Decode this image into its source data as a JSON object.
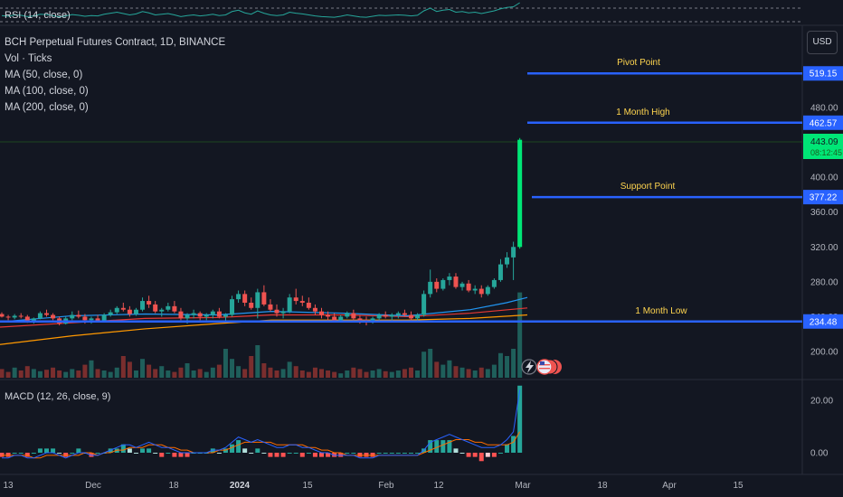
{
  "rsi": {
    "label": "RSI (14, close)"
  },
  "macd": {
    "label": "MACD (12, 26, close, 9)",
    "ticks": [
      "20.00",
      "0.00"
    ]
  },
  "legend": {
    "title": "BCH Perpetual Futures Contract, 1D, BINANCE",
    "volume": "Vol · Ticks",
    "ma50": "MA (50, close, 0)",
    "ma100": "MA (100, close, 0)",
    "ma200": "MA (200, close, 0)"
  },
  "currency": "USD",
  "colors": {
    "background": "#131722",
    "up": "#26a69a",
    "down": "#ef5350",
    "big_up": "#00e676",
    "level_line": "#2962ff",
    "annotation_text": "#ffd54f",
    "ma50": "#2196f3",
    "ma100": "#e53935",
    "ma200": "#ff9800"
  },
  "price_axis": {
    "ticks": [
      "480.00",
      "440.00",
      "400.00",
      "360.00",
      "320.00",
      "280.00",
      "240.00",
      "200.00"
    ]
  },
  "current_price": {
    "value": "443.09",
    "countdown": "08:12:45"
  },
  "chart_data": {
    "type": "candlestick",
    "title": "BCH Perpetual Futures Contract, 1D, BINANCE",
    "ylim": [
      190,
      530
    ],
    "x_ticks": [
      "13",
      "Dec",
      "18",
      "2024",
      "15",
      "Feb",
      "12",
      "Mar",
      "18",
      "Apr",
      "15"
    ],
    "levels": [
      {
        "label": "Pivot Point",
        "price": "519.15"
      },
      {
        "label": "1 Month High",
        "price": "462.57"
      },
      {
        "label": "Support Point",
        "price": "377.22"
      },
      {
        "label": "1 Month Low",
        "price": "234.48"
      }
    ],
    "candles": [
      [
        243,
        245,
        239,
        240
      ],
      [
        240,
        242,
        236,
        239
      ],
      [
        239,
        243,
        237,
        241
      ],
      [
        241,
        244,
        238,
        240
      ],
      [
        240,
        242,
        233,
        235
      ],
      [
        235,
        239,
        232,
        238
      ],
      [
        238,
        246,
        237,
        244
      ],
      [
        244,
        248,
        240,
        242
      ],
      [
        242,
        244,
        236,
        238
      ],
      [
        238,
        240,
        230,
        232
      ],
      [
        232,
        240,
        231,
        238
      ],
      [
        238,
        246,
        236,
        242
      ],
      [
        242,
        247,
        238,
        240
      ],
      [
        240,
        243,
        232,
        236
      ],
      [
        236,
        240,
        232,
        238
      ],
      [
        238,
        242,
        234,
        235
      ],
      [
        235,
        244,
        234,
        242
      ],
      [
        242,
        248,
        240,
        245
      ],
      [
        245,
        252,
        243,
        250
      ],
      [
        250,
        256,
        246,
        248
      ],
      [
        248,
        252,
        240,
        243
      ],
      [
        243,
        250,
        241,
        248
      ],
      [
        248,
        262,
        246,
        258
      ],
      [
        258,
        264,
        250,
        254
      ],
      [
        254,
        258,
        244,
        246
      ],
      [
        246,
        250,
        240,
        248
      ],
      [
        248,
        256,
        246,
        252
      ],
      [
        252,
        258,
        244,
        246
      ],
      [
        246,
        250,
        236,
        238
      ],
      [
        238,
        244,
        232,
        242
      ],
      [
        242,
        248,
        238,
        244
      ],
      [
        244,
        246,
        236,
        240
      ],
      [
        240,
        244,
        236,
        242
      ],
      [
        242,
        248,
        238,
        246
      ],
      [
        246,
        250,
        238,
        240
      ],
      [
        240,
        244,
        234,
        242
      ],
      [
        242,
        264,
        240,
        260
      ],
      [
        260,
        270,
        256,
        266
      ],
      [
        266,
        270,
        252,
        256
      ],
      [
        256,
        262,
        248,
        250
      ],
      [
        250,
        272,
        238,
        268
      ],
      [
        268,
        276,
        252,
        254
      ],
      [
        254,
        260,
        246,
        248
      ],
      [
        248,
        254,
        240,
        244
      ],
      [
        244,
        250,
        238,
        246
      ],
      [
        246,
        266,
        244,
        262
      ],
      [
        262,
        272,
        254,
        258
      ],
      [
        258,
        264,
        252,
        256
      ],
      [
        256,
        262,
        248,
        250
      ],
      [
        250,
        254,
        242,
        246
      ],
      [
        246,
        250,
        238,
        242
      ],
      [
        242,
        246,
        236,
        240
      ],
      [
        240,
        244,
        234,
        236
      ],
      [
        236,
        242,
        234,
        240
      ],
      [
        240,
        246,
        238,
        244
      ],
      [
        244,
        248,
        236,
        238
      ],
      [
        238,
        242,
        232,
        236
      ],
      [
        236,
        240,
        230,
        234
      ],
      [
        234,
        240,
        232,
        238
      ],
      [
        238,
        244,
        236,
        242
      ],
      [
        242,
        246,
        238,
        240
      ],
      [
        240,
        244,
        236,
        242
      ],
      [
        242,
        246,
        238,
        244
      ],
      [
        244,
        248,
        240,
        242
      ],
      [
        242,
        246,
        236,
        238
      ],
      [
        238,
        244,
        236,
        242
      ],
      [
        242,
        270,
        240,
        266
      ],
      [
        266,
        294,
        262,
        280
      ],
      [
        280,
        284,
        268,
        272
      ],
      [
        272,
        284,
        270,
        282
      ],
      [
        282,
        290,
        276,
        286
      ],
      [
        286,
        290,
        272,
        274
      ],
      [
        274,
        280,
        270,
        278
      ],
      [
        278,
        282,
        268,
        270
      ],
      [
        270,
        276,
        266,
        272
      ],
      [
        272,
        276,
        262,
        266
      ],
      [
        266,
        276,
        264,
        274
      ],
      [
        274,
        284,
        272,
        282
      ],
      [
        282,
        306,
        280,
        300
      ],
      [
        300,
        314,
        296,
        308
      ],
      [
        308,
        326,
        282,
        320
      ],
      [
        320,
        445,
        318,
        443
      ]
    ],
    "volume": [
      12,
      8,
      14,
      10,
      16,
      12,
      9,
      11,
      14,
      10,
      8,
      12,
      10,
      18,
      24,
      12,
      10,
      8,
      14,
      30,
      22,
      10,
      26,
      18,
      12,
      16,
      10,
      8,
      14,
      20,
      10,
      12,
      8,
      14,
      18,
      40,
      26,
      16,
      12,
      30,
      45,
      20,
      14,
      10,
      12,
      22,
      16,
      10,
      8,
      14,
      12,
      10,
      8,
      6,
      10,
      14,
      12,
      8,
      10,
      12,
      9,
      8,
      10,
      12,
      14,
      10,
      36,
      40,
      22,
      18,
      24,
      16,
      14,
      12,
      10,
      14,
      12,
      18,
      34,
      30,
      40,
      118
    ],
    "macd": [
      -2,
      -2,
      -1,
      -1,
      -2,
      -2,
      -1,
      0,
      0,
      -1,
      -2,
      -1,
      0,
      0,
      -1,
      -1,
      0,
      1,
      2,
      3,
      3,
      2,
      3,
      4,
      3,
      2,
      2,
      1,
      0,
      0,
      0,
      0,
      0,
      1,
      1,
      2,
      4,
      6,
      5,
      4,
      5,
      4,
      3,
      2,
      2,
      3,
      3,
      2,
      2,
      1,
      0,
      0,
      -1,
      -1,
      -1,
      -1,
      -2,
      -2,
      -2,
      -1,
      -1,
      -1,
      -1,
      -1,
      -1,
      -1,
      1,
      4,
      5,
      6,
      7,
      6,
      5,
      4,
      3,
      2,
      2,
      2,
      3,
      5,
      8,
      24
    ],
    "macd_signal": [
      -1,
      -1,
      -1,
      -1,
      -1,
      -2,
      -2,
      -1,
      -1,
      -1,
      -1,
      -1,
      -1,
      0,
      0,
      -1,
      0,
      0,
      1,
      1,
      2,
      2,
      2,
      3,
      3,
      3,
      2,
      2,
      1,
      1,
      0,
      0,
      0,
      0,
      1,
      1,
      2,
      3,
      4,
      4,
      4,
      4,
      4,
      3,
      3,
      3,
      3,
      3,
      2,
      2,
      1,
      1,
      0,
      0,
      -1,
      -1,
      -1,
      -1,
      -1,
      -1,
      -1,
      -1,
      -1,
      -1,
      -1,
      -1,
      0,
      1,
      2,
      3,
      4,
      5,
      5,
      5,
      4,
      4,
      3,
      3,
      3,
      3,
      4,
      8
    ],
    "rsi": [
      48,
      46,
      50,
      49,
      45,
      47,
      52,
      51,
      48,
      44,
      47,
      51,
      49,
      46,
      48,
      47,
      52,
      55,
      58,
      54,
      50,
      53,
      60,
      56,
      50,
      52,
      54,
      50,
      45,
      48,
      50,
      47,
      49,
      52,
      48,
      50,
      60,
      64,
      56,
      52,
      62,
      55,
      50,
      48,
      50,
      58,
      55,
      53,
      50,
      47,
      45,
      44,
      43,
      46,
      50,
      47,
      44,
      43,
      46,
      49,
      48,
      49,
      50,
      49,
      47,
      49,
      62,
      70,
      60,
      64,
      66,
      58,
      60,
      56,
      58,
      54,
      58,
      62,
      68,
      72,
      74,
      86
    ],
    "ma50": [
      [
        0,
        234
      ],
      [
        80,
        241
      ],
      [
        160,
        243
      ],
      [
        240,
        242
      ],
      [
        300,
        246
      ],
      [
        380,
        244
      ],
      [
        450,
        241
      ],
      [
        520,
        248
      ],
      [
        560,
        256
      ],
      [
        583,
        262
      ]
    ],
    "ma100": [
      [
        0,
        228
      ],
      [
        80,
        233
      ],
      [
        160,
        238
      ],
      [
        240,
        239
      ],
      [
        300,
        242
      ],
      [
        380,
        242
      ],
      [
        450,
        240
      ],
      [
        520,
        244
      ],
      [
        583,
        250
      ]
    ],
    "ma200": [
      [
        0,
        208
      ],
      [
        80,
        218
      ],
      [
        160,
        226
      ],
      [
        240,
        232
      ],
      [
        300,
        236
      ],
      [
        380,
        236
      ],
      [
        450,
        236
      ],
      [
        520,
        238
      ],
      [
        583,
        242
      ]
    ]
  }
}
